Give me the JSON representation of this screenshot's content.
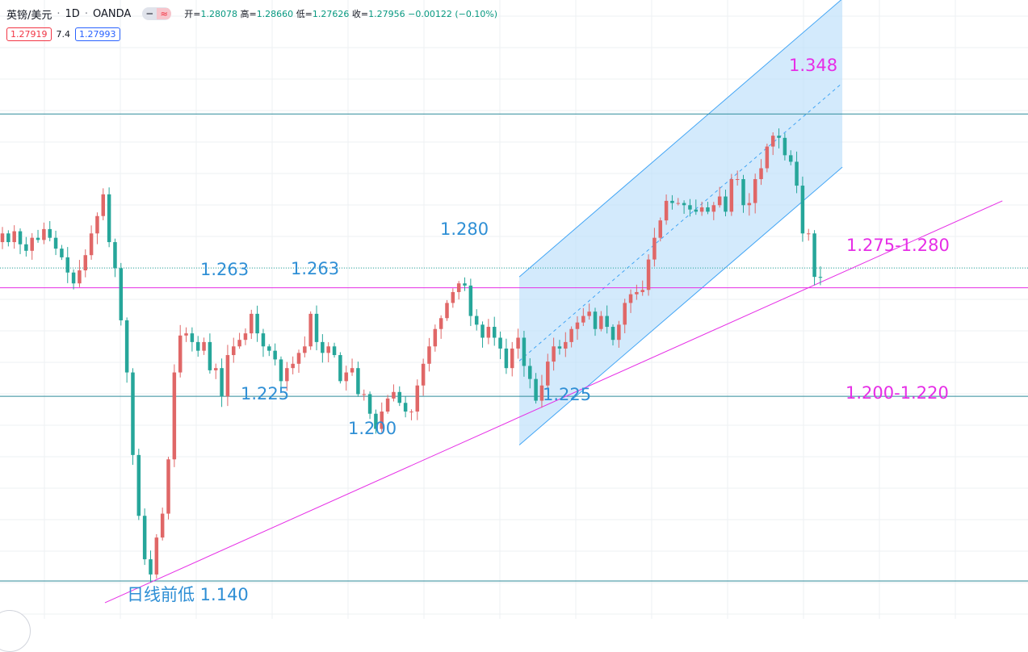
{
  "header": {
    "symbol": "英镑/美元",
    "timeframe": "1D",
    "source": "OANDA",
    "dot": "·",
    "toggle_left": "━",
    "toggle_right": "≈",
    "open_label": "开=",
    "open_value": "1.28078",
    "high_label": "高=",
    "high_value": "1.28660",
    "low_label": "低=",
    "low_value": "1.27626",
    "close_label": "收=",
    "close_value": "1.27956",
    "change": "−0.00122 (−0.10%)"
  },
  "quote": {
    "bid": "1.27919",
    "spread": "7.4",
    "ask": "1.27993"
  },
  "colors": {
    "up": "#e06767",
    "down": "#26a69a",
    "channel_fill": "#bbdefb",
    "channel_line": "#42a5f5",
    "level_line": "#2e8b9a",
    "trend_line": "#e62ee6",
    "annotation_blue": "#2f8fd5",
    "annotation_magenta": "#e62ee6"
  },
  "chart_data": {
    "type": "candlestick",
    "instrument": "GBP/USD",
    "interval": "1D",
    "y_range_approx": [
      1.135,
      1.36
    ],
    "grid": true,
    "horizontal_levels": [
      1.355,
      1.275,
      1.225,
      1.14
    ],
    "support_zone_trend": {
      "from": 1.13,
      "to": 1.315
    },
    "annotations": [
      {
        "text": "1.263"
      },
      {
        "text": "1.263"
      },
      {
        "text": "1.225"
      },
      {
        "text": "1.200"
      },
      {
        "text": "1.280"
      },
      {
        "text": "1.225"
      },
      {
        "text": "1.348"
      },
      {
        "text": "1.275-1.280"
      },
      {
        "text": "1.200-1.220"
      },
      {
        "text": "日线前低 1.140"
      }
    ],
    "price_path": [
      1.3,
      1.296,
      1.301,
      1.295,
      1.292,
      1.298,
      1.297,
      1.302,
      1.298,
      1.293,
      1.289,
      1.282,
      1.277,
      1.283,
      1.29,
      1.3,
      1.308,
      1.318,
      1.296,
      1.284,
      1.26,
      1.236,
      1.198,
      1.17,
      1.15,
      1.143,
      1.16,
      1.171,
      1.196,
      1.236,
      1.253,
      1.254,
      1.25,
      1.246,
      1.25,
      1.237,
      1.238,
      1.225,
      1.244,
      1.248,
      1.251,
      1.254,
      1.263,
      1.254,
      1.248,
      1.246,
      1.242,
      1.232,
      1.238,
      1.24,
      1.245,
      1.248,
      1.263,
      1.25,
      1.245,
      1.248,
      1.244,
      1.232,
      1.236,
      1.238,
      1.226,
      1.226,
      1.217,
      1.21,
      1.218,
      1.224,
      1.227,
      1.222,
      1.218,
      1.218,
      1.23,
      1.24,
      1.248,
      1.256,
      1.261,
      1.268,
      1.273,
      1.277,
      1.276,
      1.262,
      1.258,
      1.252,
      1.257,
      1.252,
      1.247,
      1.238,
      1.247,
      1.252,
      1.239,
      1.233,
      1.223,
      1.23,
      1.241,
      1.248,
      1.247,
      1.25,
      1.256,
      1.259,
      1.262,
      1.264,
      1.256,
      1.262,
      1.257,
      1.251,
      1.258,
      1.268,
      1.272,
      1.273,
      1.274,
      1.288,
      1.298,
      1.306,
      1.315,
      1.314,
      1.314,
      1.313,
      1.311,
      1.31,
      1.312,
      1.31,
      1.313,
      1.317,
      1.31,
      1.325,
      1.325,
      1.313,
      1.314,
      1.325,
      1.33,
      1.34,
      1.345,
      1.344,
      1.336,
      1.333,
      1.322,
      1.3,
      1.3,
      1.28,
      1.2796
    ]
  }
}
